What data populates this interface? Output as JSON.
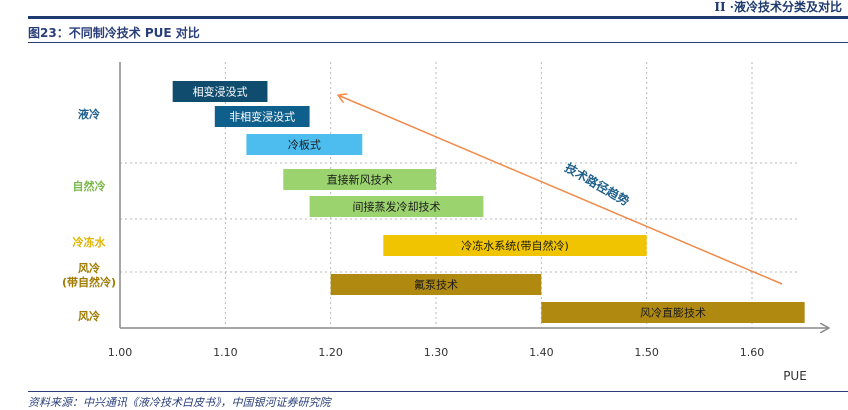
{
  "header": {
    "text": "II ·液冷技术分类及对比"
  },
  "figure": {
    "title": "图23：不同制冷技术 PUE 对比",
    "source": "资料来源：中兴通讯《液冷技术白皮书》，中国银河证券研究院"
  },
  "chart_data": {
    "type": "bar",
    "orientation": "horizontal-range",
    "title": "",
    "xlabel": "PUE",
    "xlim": [
      1.0,
      1.65
    ],
    "x_ticks": [
      "1.00",
      "1.10",
      "1.20",
      "1.30",
      "1.40",
      "1.50",
      "1.60"
    ],
    "groups": [
      {
        "label": "液冷",
        "color": "#1f5f8b"
      },
      {
        "label": "自然冷",
        "color": "#7ab648"
      },
      {
        "label": "冷冻水",
        "color": "#e0b400"
      },
      {
        "label": "风冷\n(带自然冷)",
        "color": "#a07a00"
      },
      {
        "label": "风冷",
        "color": "#a07a00"
      }
    ],
    "bars": [
      {
        "name": "相变浸没式",
        "group": 0,
        "start": 1.05,
        "end": 1.14,
        "color": "#0f4c6e",
        "text_color": "#ffffff"
      },
      {
        "name": "非相变浸没式",
        "group": 0,
        "start": 1.09,
        "end": 1.18,
        "color": "#0f5f8c",
        "text_color": "#ffffff"
      },
      {
        "name": "冷板式",
        "group": 0,
        "start": 1.12,
        "end": 1.23,
        "color": "#4dbdf0",
        "text_color": "#1a1a1a"
      },
      {
        "name": "直接新风技术",
        "group": 1,
        "start": 1.155,
        "end": 1.3,
        "color": "#9bd36e",
        "text_color": "#1a1a1a"
      },
      {
        "name": "间接蒸发冷却技术",
        "group": 1,
        "start": 1.18,
        "end": 1.345,
        "color": "#9bd36e",
        "text_color": "#1a1a1a"
      },
      {
        "name": "冷冻水系统(带自然冷)",
        "group": 2,
        "start": 1.25,
        "end": 1.5,
        "color": "#f0c400",
        "text_color": "#1a1a1a"
      },
      {
        "name": "氟泵技术",
        "group": 3,
        "start": 1.2,
        "end": 1.4,
        "color": "#b08a10",
        "text_color": "#1a1a1a"
      },
      {
        "name": "风冷直膨技术",
        "group": 4,
        "start": 1.4,
        "end": 1.65,
        "color": "#b08a10",
        "text_color": "#1a1a1a"
      }
    ],
    "annotation": {
      "text": "技术路径趋势",
      "color": "#ee8a4a"
    },
    "grid": true
  }
}
